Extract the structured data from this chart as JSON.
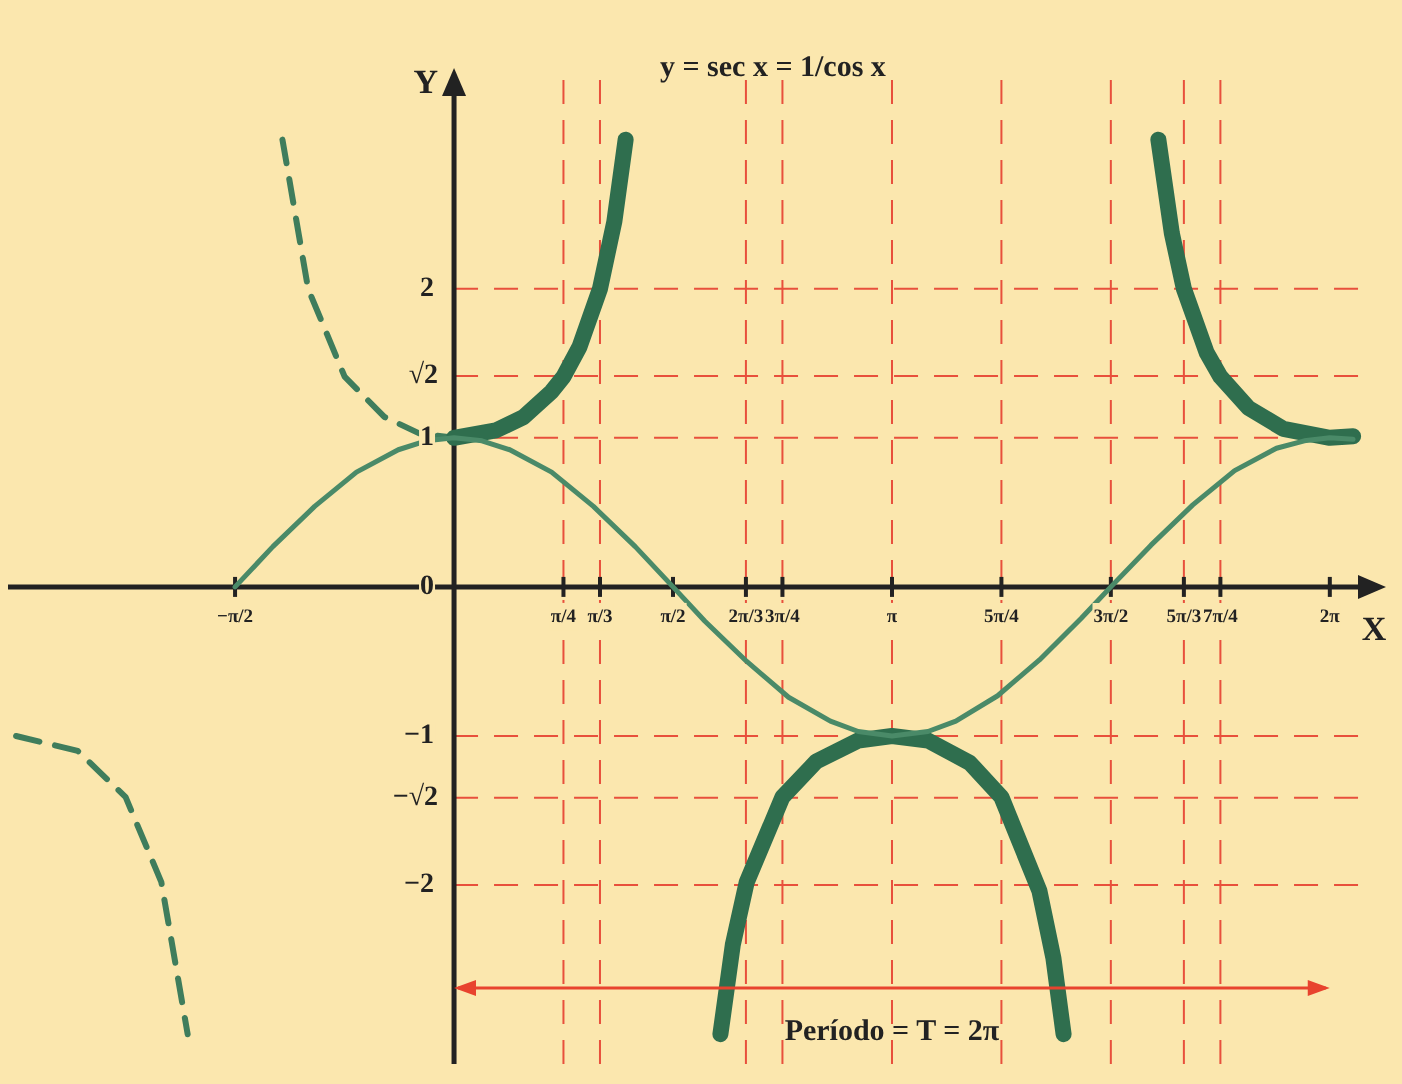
{
  "chart_data": {
    "type": "line",
    "title": "y = sec x = 1/cos x",
    "xlabel": "X",
    "ylabel": "Y",
    "xlim": [
      -3.2,
      6.6
    ],
    "ylim": [
      -3.2,
      3.4
    ],
    "xticks": [
      {
        "value": -1.571,
        "label": "−π/2"
      },
      {
        "value": 0.785,
        "label": "π/4"
      },
      {
        "value": 1.047,
        "label": "π/3"
      },
      {
        "value": 1.571,
        "label": "π/2"
      },
      {
        "value": 2.094,
        "label": "2π/3"
      },
      {
        "value": 2.356,
        "label": "3π/4"
      },
      {
        "value": 3.142,
        "label": "π"
      },
      {
        "value": 3.927,
        "label": "5π/4"
      },
      {
        "value": 4.712,
        "label": "3π/2"
      },
      {
        "value": 5.236,
        "label": "5π/3"
      },
      {
        "value": 5.498,
        "label": "7π/4"
      },
      {
        "value": 6.283,
        "label": "2π"
      }
    ],
    "yticks": [
      {
        "value": -2,
        "label": "−2"
      },
      {
        "value": -1,
        "label": "−1"
      },
      0,
      1,
      2
    ],
    "grid": false,
    "legend": false,
    "marker": "none",
    "series": [
      {
        "color": "#4a8a68",
        "line_style": "solid",
        "x": [
          -1.571,
          -1.3,
          -1.0,
          -0.7,
          -0.4,
          -0.2,
          0,
          0.2,
          0.4,
          0.7,
          1.0,
          1.3,
          1.571,
          1.8,
          2.1,
          2.4,
          2.7,
          2.9,
          3.142,
          3.4,
          3.6,
          3.9,
          4.2,
          4.5,
          4.712,
          5.0,
          5.3,
          5.6,
          5.9,
          6.1,
          6.283,
          6.45
        ],
        "values": [
          0,
          0.27,
          0.54,
          0.77,
          0.92,
          0.98,
          1,
          0.98,
          0.92,
          0.77,
          0.54,
          0.27,
          0,
          -0.23,
          -0.5,
          -0.74,
          -0.9,
          -0.97,
          -1,
          -0.97,
          -0.9,
          -0.73,
          -0.49,
          -0.21,
          0,
          0.28,
          0.55,
          0.78,
          0.93,
          0.98,
          1,
          0.99
        ]
      },
      {
        "color": "#2f6e4e",
        "line_style": "solid",
        "x": [
          0,
          0.3,
          0.5,
          0.7,
          0.785,
          0.9,
          1.047,
          1.15,
          1.231,
          1.571,
          1.911,
          2.0,
          2.1,
          2.356,
          2.6,
          2.9,
          3.142,
          3.4,
          3.7,
          3.927,
          4.2,
          4.3,
          4.373,
          4.712,
          5.053,
          5.15,
          5.236,
          5.4,
          5.498,
          5.7,
          5.95,
          6.283,
          6.45
        ],
        "values": [
          1,
          1.05,
          1.14,
          1.31,
          1.41,
          1.61,
          2,
          2.45,
          3.0,
          null,
          -3.0,
          -2.4,
          -1.98,
          -1.41,
          -1.17,
          -1.03,
          -1,
          -1.03,
          -1.18,
          -1.41,
          -2.04,
          -2.49,
          -3.0,
          null,
          3.0,
          2.37,
          2,
          1.57,
          1.41,
          1.2,
          1.06,
          1,
          1.01
        ]
      },
      {
        "color": "#3f7d5c",
        "line_style": "dashed",
        "x": [
          -3.142,
          -2.7,
          -2.356,
          -2.1,
          -1.911,
          -1.571,
          -1.231,
          -1.047,
          -0.785,
          -0.5,
          -0.25,
          0
        ],
        "values": [
          -1,
          -1.1,
          -1.41,
          -1.98,
          -3.0,
          null,
          3.0,
          2,
          1.41,
          1.14,
          1.03,
          1
        ]
      }
    ],
    "ref_lines": [
      {
        "axis": "y",
        "value": 2,
        "color": "#e8503c",
        "line_style": "dashed"
      },
      {
        "axis": "y",
        "value": 1.414,
        "label": "√2",
        "color": "#e8503c",
        "line_style": "dashed"
      },
      {
        "axis": "y",
        "value": 1,
        "color": "#e8503c",
        "line_style": "dashed"
      },
      {
        "axis": "y",
        "value": -1,
        "color": "#e8503c",
        "line_style": "dashed"
      },
      {
        "axis": "y",
        "value": -1.414,
        "label": "−√2",
        "color": "#e8503c",
        "line_style": "dashed"
      },
      {
        "axis": "y",
        "value": -2,
        "color": "#e8503c",
        "line_style": "dashed"
      },
      {
        "axis": "x",
        "value": 0.785,
        "color": "#e8503c",
        "line_style": "dashed"
      },
      {
        "axis": "x",
        "value": 1.047,
        "color": "#e8503c",
        "line_style": "dashed"
      },
      {
        "axis": "x",
        "value": 2.094,
        "color": "#e8503c",
        "line_style": "dashed"
      },
      {
        "axis": "x",
        "value": 2.356,
        "color": "#e8503c",
        "line_style": "dashed"
      },
      {
        "axis": "x",
        "value": 3.142,
        "color": "#e8503c",
        "line_style": "dashed"
      },
      {
        "axis": "x",
        "value": 3.927,
        "color": "#e8503c",
        "line_style": "dashed"
      },
      {
        "axis": "x",
        "value": 4.712,
        "color": "#e8503c",
        "line_style": "dashed"
      },
      {
        "axis": "x",
        "value": 5.236,
        "color": "#e8503c",
        "line_style": "dashed"
      },
      {
        "axis": "x",
        "value": 5.498,
        "color": "#e8503c",
        "line_style": "dashed"
      }
    ],
    "annotations": [
      "Período = T = 2π"
    ]
  }
}
